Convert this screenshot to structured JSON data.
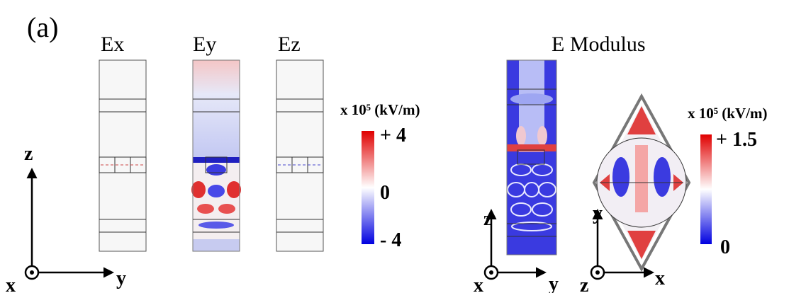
{
  "panel_label": "(a)",
  "left": {
    "titles": [
      "Ex",
      "Ey",
      "Ez"
    ],
    "colorbar": {
      "unit": "x 10⁵ (kV/m)",
      "labels": [
        "+ 4",
        "0",
        "- 4"
      ]
    },
    "axes": {
      "vertical": "z",
      "out": "x",
      "horizontal": "y"
    }
  },
  "right": {
    "title": "E Modulus",
    "colorbar": {
      "unit": "x 10⁵ (kV/m)",
      "labels": [
        "+ 1.5",
        "0"
      ]
    },
    "axes_side": {
      "vertical": "z",
      "out": "x",
      "horizontal": "y"
    },
    "axes_top": {
      "vertical": "y",
      "out": "z",
      "horizontal": "x"
    }
  }
}
